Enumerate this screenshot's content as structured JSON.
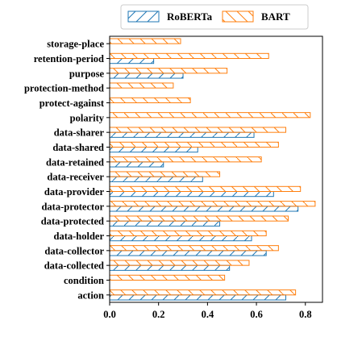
{
  "chart_data": {
    "type": "bar",
    "orientation": "horizontal",
    "categories": [
      "action",
      "condition",
      "data-collected",
      "data-collector",
      "data-holder",
      "data-protected",
      "data-protector",
      "data-provider",
      "data-receiver",
      "data-retained",
      "data-shared",
      "data-sharer",
      "polarity",
      "protect-against",
      "protection-method",
      "purpose",
      "retention-period",
      "storage-place"
    ],
    "series": [
      {
        "name": "RoBERTa",
        "color": "#1f77b4",
        "hatch": "/",
        "values": [
          0.72,
          0.0,
          0.49,
          0.64,
          0.58,
          0.45,
          0.77,
          0.67,
          0.38,
          0.22,
          0.36,
          0.59,
          0.0,
          0.0,
          0.0,
          0.3,
          0.18,
          0.0
        ]
      },
      {
        "name": "BART",
        "color": "#ff7f0e",
        "hatch": "\\",
        "values": [
          0.76,
          0.47,
          0.57,
          0.69,
          0.64,
          0.73,
          0.84,
          0.78,
          0.45,
          0.62,
          0.69,
          0.72,
          0.82,
          0.33,
          0.26,
          0.48,
          0.65,
          0.29
        ]
      }
    ],
    "xlim": [
      0,
      0.87
    ],
    "xticks": [
      "0.0",
      "0.2",
      "0.4",
      "0.6",
      "0.8"
    ],
    "xtick_values": [
      0.0,
      0.2,
      0.4,
      0.6,
      0.8
    ],
    "legend_position": "top",
    "grid": false
  }
}
